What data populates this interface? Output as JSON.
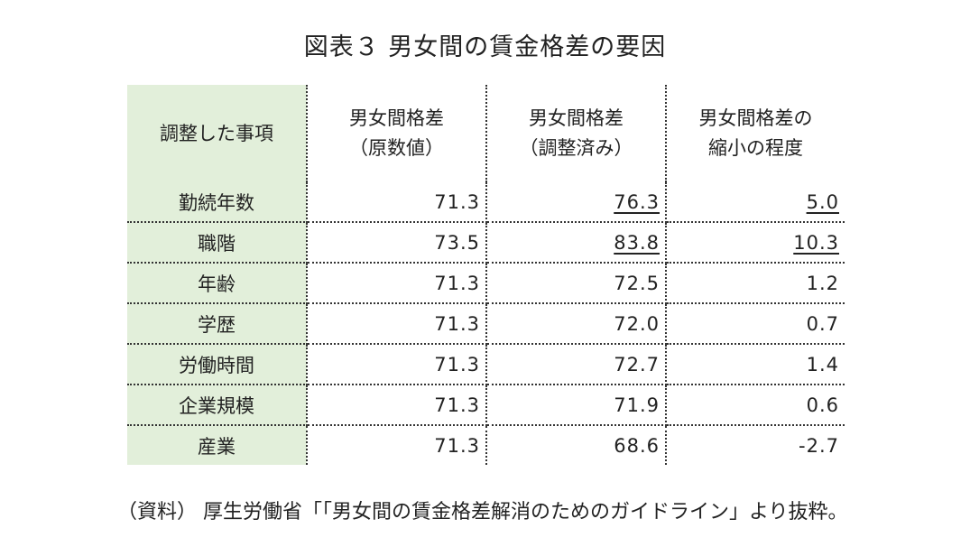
{
  "title": "図表３ 男女間の賃金格差の要因",
  "table": {
    "headers": {
      "item": "調整した事項",
      "raw_line1": "男女間格差",
      "raw_line2": "（原数値）",
      "adj_line1": "男女間格差",
      "adj_line2": "（調整済み）",
      "shrink_line1": "男女間格差の",
      "shrink_line2": "縮小の程度"
    },
    "rows": [
      {
        "label": "勤続年数",
        "raw": "71.3",
        "adjusted": "76.3",
        "reduction": "5.0"
      },
      {
        "label": "職階",
        "raw": "73.5",
        "adjusted": "83.8",
        "reduction": "10.3"
      },
      {
        "label": "年齢",
        "raw": "71.3",
        "adjusted": "72.5",
        "reduction": "1.2"
      },
      {
        "label": "学歴",
        "raw": "71.3",
        "adjusted": "72.0",
        "reduction": "0.7"
      },
      {
        "label": "労働時間",
        "raw": "71.3",
        "adjusted": "72.7",
        "reduction": "1.4"
      },
      {
        "label": "企業規模",
        "raw": "71.3",
        "adjusted": "71.9",
        "reduction": "0.6"
      },
      {
        "label": "産業",
        "raw": "71.3",
        "adjusted": "68.6",
        "reduction": "-2.7"
      }
    ]
  },
  "source": "（資料） 厚生労働省「「男女間の賃金格差解消のためのガイドライン」より抜粋。",
  "colors": {
    "header_bg": "#e2efda",
    "grid": "#333333"
  }
}
